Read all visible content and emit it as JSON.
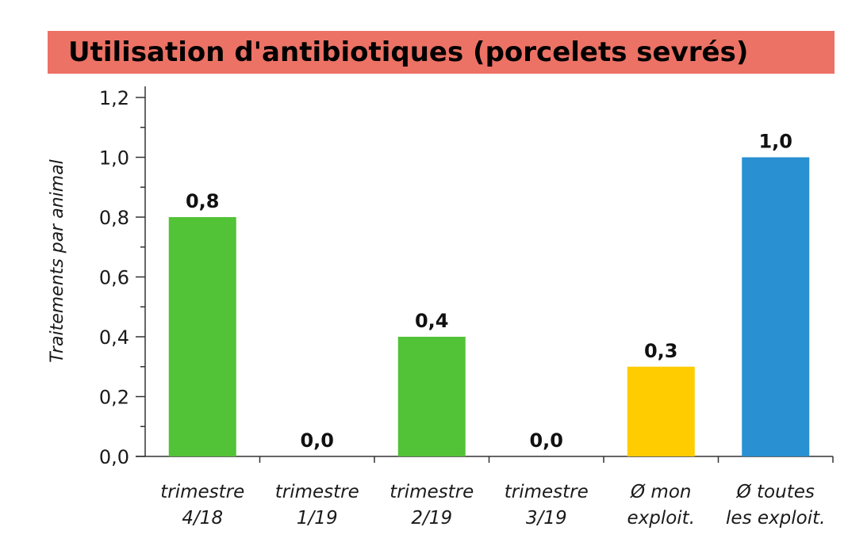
{
  "chart_data": {
    "type": "bar",
    "title": "Utilisation d'antibiotiques (porcelets sevrés)",
    "ylabel": "Traitements par animal",
    "xlabel": "",
    "ylim": [
      0,
      1.2
    ],
    "y_ticks": [
      0.0,
      0.2,
      0.4,
      0.6,
      0.8,
      1.0,
      1.2
    ],
    "y_tick_labels": [
      "0,0",
      "0,2",
      "0,4",
      "0,6",
      "0,8",
      "1,0",
      "1,2"
    ],
    "grid": false,
    "categories": [
      [
        "trimestre",
        "4/18"
      ],
      [
        "trimestre",
        "1/19"
      ],
      [
        "trimestre",
        "2/19"
      ],
      [
        "trimestre",
        "3/19"
      ],
      [
        "Ø mon",
        "exploit."
      ],
      [
        "Ø toutes",
        "les exploit."
      ]
    ],
    "values": [
      0.8,
      0.0,
      0.4,
      0.0,
      0.3,
      1.0
    ],
    "value_labels": [
      "0,8",
      "0,0",
      "0,4",
      "0,0",
      "0,3",
      "1,0"
    ],
    "bar_colors": [
      "#52c236",
      "#52c236",
      "#52c236",
      "#52c236",
      "#ffcc00",
      "#2990d2"
    ],
    "title_background": "#ec7265"
  }
}
